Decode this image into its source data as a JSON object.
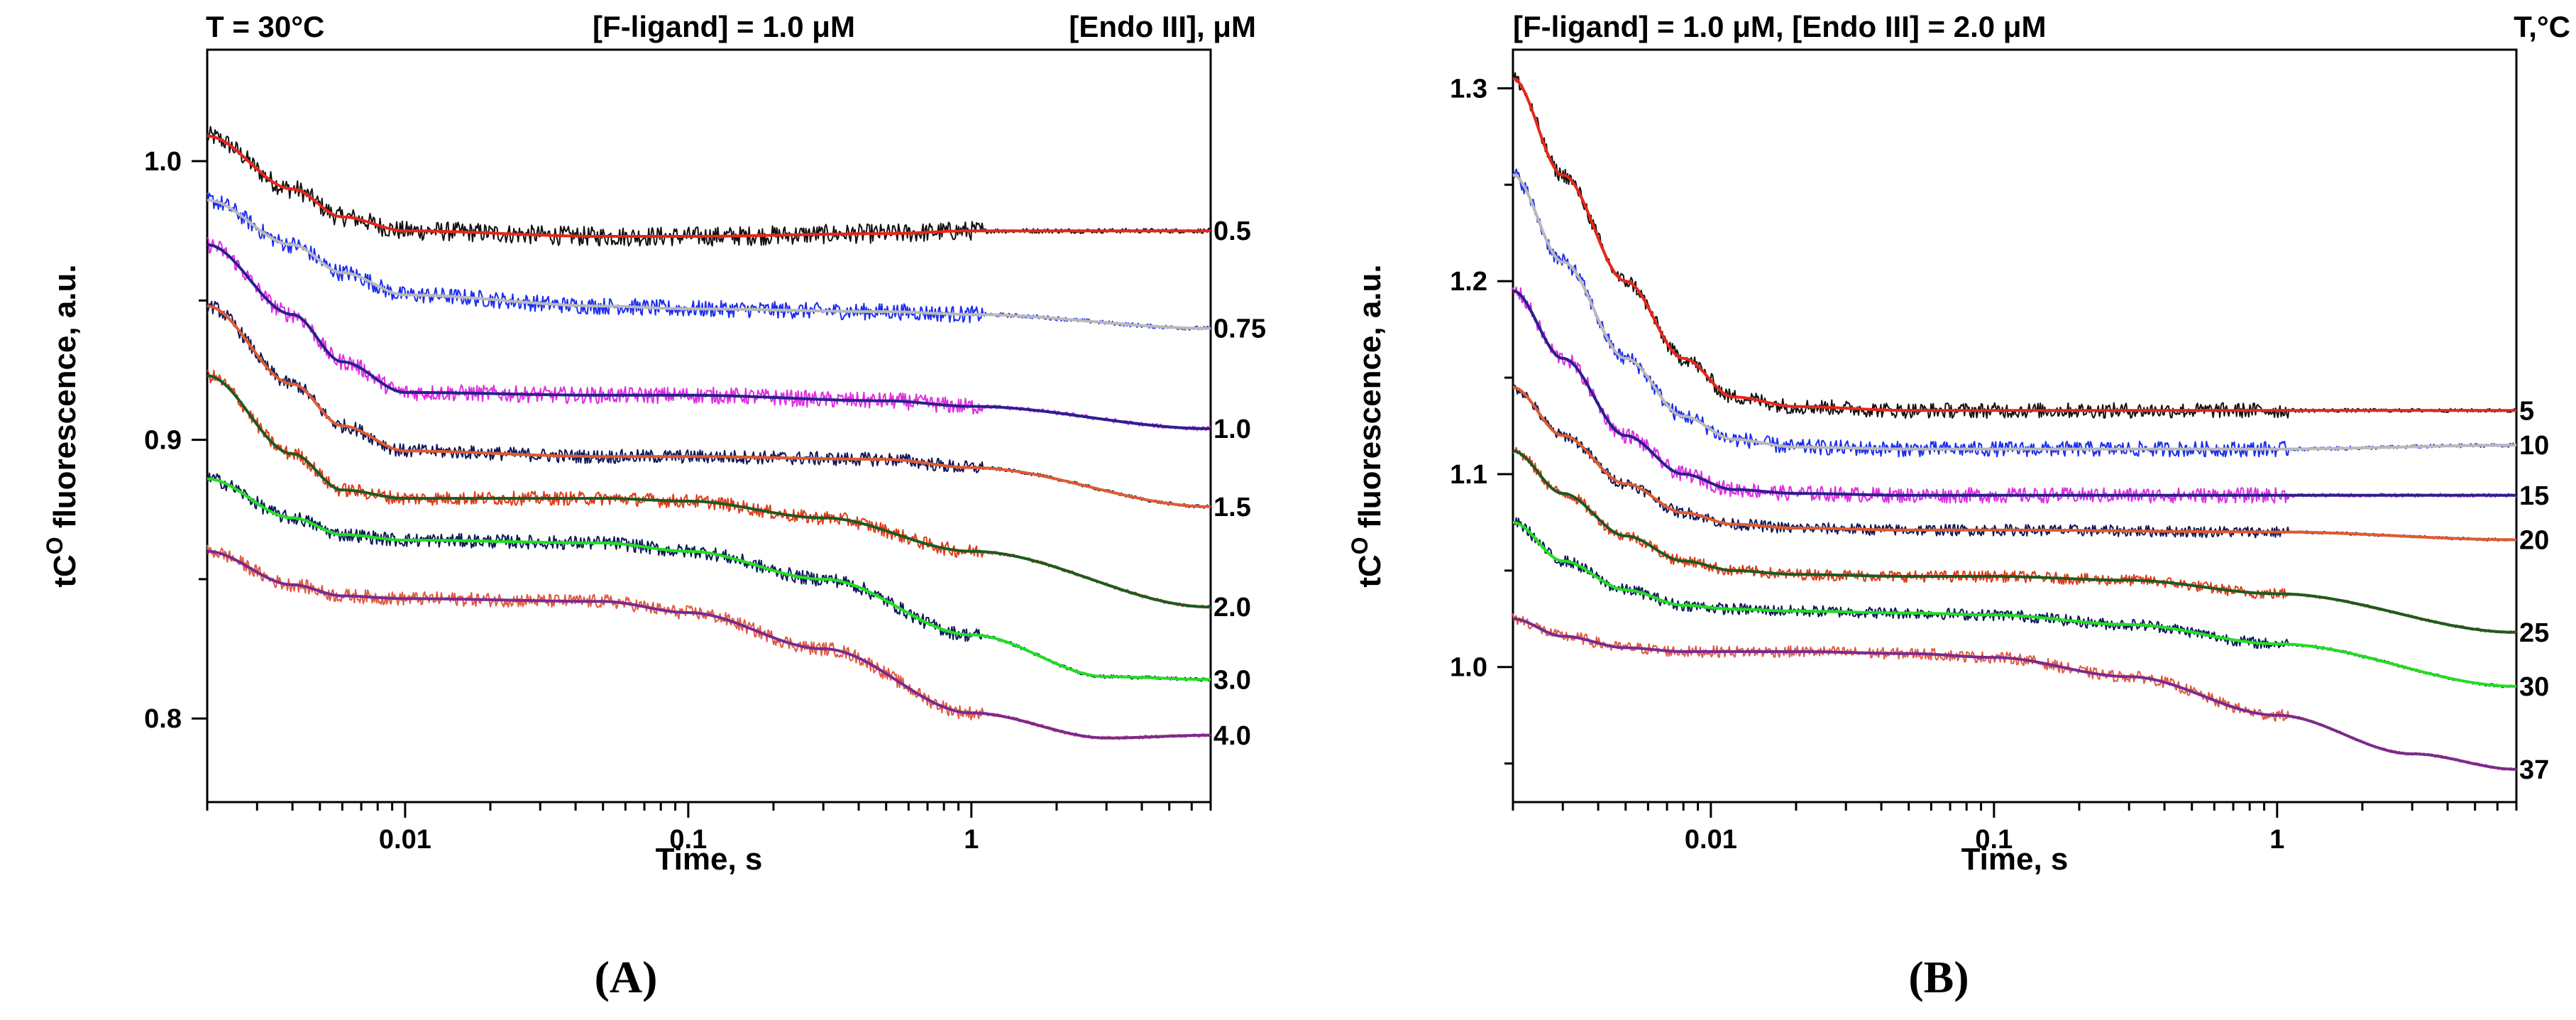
{
  "chart_data": [
    {
      "type": "line",
      "panel_label": "(A)",
      "title_left": "T = 30°C",
      "title_center": "[F-ligand] = 1.0 μM",
      "title_right": "[Endo III], μM",
      "xlabel": "Time, s",
      "ylabel_main": "tC",
      "ylabel_sup": "O",
      "ylabel_rest": " fluorescence, a.u.",
      "xscale": "log",
      "xlim": [
        0.002,
        7
      ],
      "ylim": [
        0.77,
        1.04
      ],
      "xticks": [
        {
          "value": 0.01,
          "label": "0.01"
        },
        {
          "value": 0.1,
          "label": "0.1"
        },
        {
          "value": 1,
          "label": "1"
        }
      ],
      "yticks": [
        {
          "value": 0.8,
          "label": "0.8"
        },
        {
          "value": 0.9,
          "label": "0.9"
        },
        {
          "value": 1.0,
          "label": "1.0"
        }
      ],
      "series": [
        {
          "name": "0.5",
          "data_color": "#111111",
          "fit_color": "#e8261a",
          "noise": 0.0035,
          "x": [
            0.002,
            0.004,
            0.006,
            0.01,
            0.05,
            0.1,
            0.5,
            1,
            7
          ],
          "y": [
            1.009,
            0.99,
            0.98,
            0.975,
            0.973,
            0.973,
            0.974,
            0.975,
            0.975
          ]
        },
        {
          "name": "0.75",
          "data_color": "#1b2cf0",
          "fit_color": "#b9b9b9",
          "noise": 0.003,
          "x": [
            0.002,
            0.004,
            0.006,
            0.01,
            0.05,
            0.1,
            0.5,
            1,
            7
          ],
          "y": [
            0.986,
            0.97,
            0.96,
            0.952,
            0.948,
            0.947,
            0.946,
            0.945,
            0.94
          ]
        },
        {
          "name": "1.0",
          "data_color": "#e02ee0",
          "fit_color": "#2a1f8f",
          "noise": 0.003,
          "x": [
            0.002,
            0.004,
            0.006,
            0.01,
            0.05,
            0.1,
            0.5,
            1,
            7
          ],
          "y": [
            0.97,
            0.945,
            0.928,
            0.917,
            0.916,
            0.916,
            0.914,
            0.912,
            0.904
          ]
        },
        {
          "name": "1.5",
          "data_color": "#0e1a5a",
          "fit_color": "#e05a30",
          "noise": 0.0025,
          "x": [
            0.002,
            0.004,
            0.006,
            0.01,
            0.05,
            0.1,
            0.5,
            1,
            7
          ],
          "y": [
            0.948,
            0.92,
            0.905,
            0.896,
            0.894,
            0.894,
            0.893,
            0.89,
            0.876
          ]
        },
        {
          "name": "2.0",
          "data_color": "#e03a1a",
          "fit_color": "#1e5a20",
          "noise": 0.0025,
          "x": [
            0.002,
            0.004,
            0.006,
            0.01,
            0.05,
            0.1,
            0.3,
            1,
            7
          ],
          "y": [
            0.923,
            0.895,
            0.882,
            0.879,
            0.879,
            0.878,
            0.872,
            0.86,
            0.84
          ]
        },
        {
          "name": "3.0",
          "data_color": "#0e1a5a",
          "fit_color": "#22dd22",
          "noise": 0.0025,
          "x": [
            0.002,
            0.004,
            0.006,
            0.01,
            0.05,
            0.1,
            0.3,
            1,
            3,
            7
          ],
          "y": [
            0.886,
            0.872,
            0.866,
            0.864,
            0.863,
            0.86,
            0.85,
            0.83,
            0.815,
            0.814
          ]
        },
        {
          "name": "4.0",
          "data_color": "#e05a40",
          "fit_color": "#7a2a8f",
          "noise": 0.0025,
          "x": [
            0.002,
            0.004,
            0.006,
            0.01,
            0.05,
            0.1,
            0.3,
            1,
            3,
            7
          ],
          "y": [
            0.86,
            0.848,
            0.844,
            0.843,
            0.842,
            0.838,
            0.825,
            0.802,
            0.793,
            0.794
          ]
        }
      ]
    },
    {
      "type": "line",
      "panel_label": "(B)",
      "title_left": "",
      "title_center": "[F-ligand] = 1.0 μM, [Endo III] = 2.0 μM",
      "title_right": "T,°C",
      "xlabel": "Time, s",
      "ylabel_main": "tC",
      "ylabel_sup": "O",
      "ylabel_rest": " fluorescence, a.u.",
      "xscale": "log",
      "xlim": [
        0.002,
        7
      ],
      "ylim": [
        0.93,
        1.32
      ],
      "xticks": [
        {
          "value": 0.01,
          "label": "0.01"
        },
        {
          "value": 0.1,
          "label": "0.1"
        },
        {
          "value": 1,
          "label": "1"
        }
      ],
      "yticks": [
        {
          "value": 1.0,
          "label": "1.0"
        },
        {
          "value": 1.1,
          "label": "1.1"
        },
        {
          "value": 1.2,
          "label": "1.2"
        },
        {
          "value": 1.3,
          "label": "1.3"
        }
      ],
      "series": [
        {
          "name": "5",
          "data_color": "#111111",
          "fit_color": "#e8261a",
          "noise": 0.004,
          "x": [
            0.002,
            0.003,
            0.005,
            0.008,
            0.012,
            0.02,
            0.05,
            0.1,
            1,
            7
          ],
          "y": [
            1.305,
            1.255,
            1.2,
            1.16,
            1.14,
            1.135,
            1.133,
            1.133,
            1.133,
            1.133
          ]
        },
        {
          "name": "10",
          "data_color": "#1b2cf0",
          "fit_color": "#b9b9b9",
          "noise": 0.004,
          "x": [
            0.002,
            0.003,
            0.005,
            0.008,
            0.012,
            0.02,
            0.05,
            0.1,
            1,
            7
          ],
          "y": [
            1.255,
            1.21,
            1.16,
            1.13,
            1.118,
            1.114,
            1.113,
            1.113,
            1.113,
            1.115
          ]
        },
        {
          "name": "15",
          "data_color": "#e02ee0",
          "fit_color": "#2a1f8f",
          "noise": 0.004,
          "x": [
            0.002,
            0.003,
            0.005,
            0.008,
            0.012,
            0.02,
            0.05,
            0.1,
            1,
            7
          ],
          "y": [
            1.195,
            1.16,
            1.12,
            1.1,
            1.092,
            1.09,
            1.089,
            1.089,
            1.089,
            1.089
          ]
        },
        {
          "name": "20",
          "data_color": "#0e1a5a",
          "fit_color": "#e05a30",
          "noise": 0.003,
          "x": [
            0.002,
            0.003,
            0.005,
            0.008,
            0.012,
            0.02,
            0.05,
            0.1,
            1,
            7
          ],
          "y": [
            1.145,
            1.12,
            1.095,
            1.08,
            1.074,
            1.072,
            1.071,
            1.071,
            1.07,
            1.066
          ]
        },
        {
          "name": "25",
          "data_color": "#e03a1a",
          "fit_color": "#1e5a20",
          "noise": 0.003,
          "x": [
            0.002,
            0.003,
            0.005,
            0.008,
            0.012,
            0.02,
            0.05,
            0.1,
            0.3,
            1,
            7
          ],
          "y": [
            1.112,
            1.09,
            1.068,
            1.055,
            1.05,
            1.048,
            1.047,
            1.047,
            1.045,
            1.038,
            1.018
          ]
        },
        {
          "name": "30",
          "data_color": "#0e1a5a",
          "fit_color": "#22dd22",
          "noise": 0.003,
          "x": [
            0.002,
            0.003,
            0.005,
            0.008,
            0.012,
            0.02,
            0.05,
            0.1,
            0.3,
            1,
            7
          ],
          "y": [
            1.075,
            1.055,
            1.04,
            1.032,
            1.03,
            1.029,
            1.028,
            1.027,
            1.022,
            1.012,
            0.99
          ]
        },
        {
          "name": "37",
          "data_color": "#e05a40",
          "fit_color": "#7a2a8f",
          "noise": 0.003,
          "x": [
            0.002,
            0.003,
            0.005,
            0.008,
            0.012,
            0.02,
            0.05,
            0.1,
            0.3,
            1,
            3,
            7
          ],
          "y": [
            1.025,
            1.016,
            1.01,
            1.008,
            1.008,
            1.008,
            1.007,
            1.005,
            0.995,
            0.975,
            0.955,
            0.947
          ]
        }
      ]
    }
  ]
}
